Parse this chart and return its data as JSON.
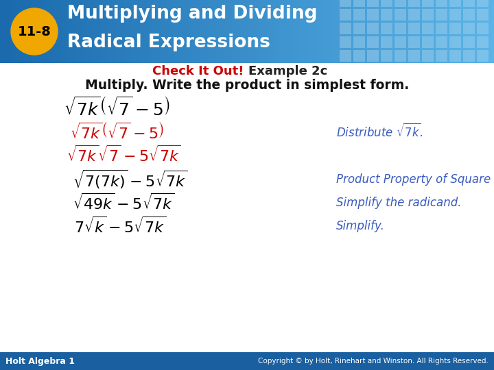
{
  "title_line1": "Multiplying and Dividing",
  "title_line2": "Radical Expressions",
  "lesson_num": "11-8",
  "header_bg_left": "#1a6aad",
  "header_bg_right": "#5ab4e8",
  "badge_color": "#f0a800",
  "check_it_out_color": "#cc0000",
  "example_color": "#222222",
  "footer_bg_color": "#1a5fa0",
  "footer_text_left": "Holt Algebra 1",
  "footer_text_right": "Copyright © by Holt, Rinehart and Winston. All Rights Reserved.",
  "bg_color": "#ffffff",
  "math_color_black": "#000000",
  "math_color_red": "#cc0000",
  "math_color_blue": "#3a5bbf"
}
